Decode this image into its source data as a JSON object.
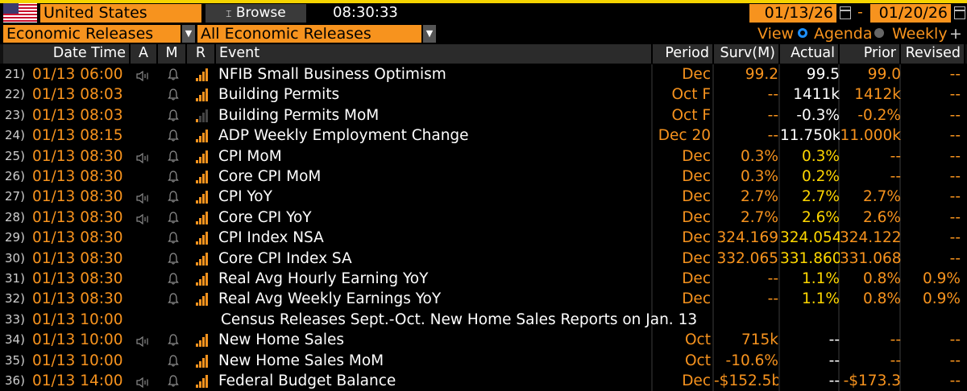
{
  "topbar": {
    "country": "United States",
    "browse_label": "Browse",
    "time": "08:30:33",
    "date_from": "01/13/26",
    "date_to": "01/20/26",
    "date_separator": "-"
  },
  "filters": {
    "category": "Economic Releases",
    "subcategory": "All Economic Releases",
    "view_label": "View",
    "agenda_label": "Agenda",
    "weekly_label": "Weekly",
    "plus_label": "+"
  },
  "columns": {
    "datetime": "Date Time",
    "a": "A",
    "m": "M",
    "r": "R",
    "event": "Event",
    "period": "Period",
    "surv": "Surv(M)",
    "actual": "Actual",
    "prior": "Prior",
    "revised": "Revised"
  },
  "colors": {
    "accent": "#f7931e",
    "actual_highlight": "#ffd700",
    "background": "#000000"
  },
  "rows": [
    {
      "n": "21)",
      "dt": "01/13 06:00",
      "alert": true,
      "bars": 4,
      "event": "NFIB Small Business Optimism",
      "period": "Dec",
      "surv": "99.2",
      "actual": "99.5",
      "actual_color": "white",
      "prior": "99.0",
      "revised": "--"
    },
    {
      "n": "22)",
      "dt": "01/13 08:03",
      "alert": false,
      "bars": 4,
      "event": "Building Permits",
      "period": "Oct F",
      "surv": "--",
      "actual": "1411k",
      "actual_color": "white",
      "prior": "1412k",
      "revised": "--"
    },
    {
      "n": "23)",
      "dt": "01/13 08:03",
      "alert": false,
      "bars": 1,
      "event": "Building Permits MoM",
      "period": "Oct F",
      "surv": "--",
      "actual": "-0.3%",
      "actual_color": "white",
      "prior": "-0.2%",
      "revised": "--"
    },
    {
      "n": "24)",
      "dt": "01/13 08:15",
      "alert": false,
      "bars": 4,
      "event": "ADP Weekly Employment Change",
      "period": "Dec 20",
      "surv": "--",
      "actual": "11.750k",
      "actual_color": "white",
      "prior": "11.000k",
      "revised": "--"
    },
    {
      "n": "25)",
      "dt": "01/13 08:30",
      "alert": true,
      "bars": 4,
      "event": "CPI MoM",
      "period": "Dec",
      "surv": "0.3%",
      "actual": "0.3%",
      "actual_color": "yellow",
      "prior": "--",
      "revised": "--"
    },
    {
      "n": "26)",
      "dt": "01/13 08:30",
      "alert": false,
      "bars": 4,
      "event": "Core CPI MoM",
      "period": "Dec",
      "surv": "0.3%",
      "actual": "0.2%",
      "actual_color": "yellow",
      "prior": "--",
      "revised": "--"
    },
    {
      "n": "27)",
      "dt": "01/13 08:30",
      "alert": true,
      "bars": 4,
      "event": "CPI YoY",
      "period": "Dec",
      "surv": "2.7%",
      "actual": "2.7%",
      "actual_color": "yellow",
      "prior": "2.7%",
      "revised": "--"
    },
    {
      "n": "28)",
      "dt": "01/13 08:30",
      "alert": true,
      "bars": 4,
      "event": "Core CPI YoY",
      "period": "Dec",
      "surv": "2.7%",
      "actual": "2.6%",
      "actual_color": "yellow",
      "prior": "2.6%",
      "revised": "--"
    },
    {
      "n": "29)",
      "dt": "01/13 08:30",
      "alert": false,
      "bars": 4,
      "event": "CPI Index NSA",
      "period": "Dec",
      "surv": "324.169",
      "actual": "324.054",
      "actual_color": "yellow",
      "prior": "324.122",
      "revised": "--"
    },
    {
      "n": "30)",
      "dt": "01/13 08:30",
      "alert": false,
      "bars": 4,
      "event": "Core CPI Index SA",
      "period": "Dec",
      "surv": "332.065",
      "actual": "331.860",
      "actual_color": "yellow",
      "prior": "331.068",
      "revised": "--"
    },
    {
      "n": "31)",
      "dt": "01/13 08:30",
      "alert": false,
      "bars": 4,
      "event": "Real Avg Hourly Earning YoY",
      "period": "Dec",
      "surv": "--",
      "actual": "1.1%",
      "actual_color": "yellow",
      "prior": "0.8%",
      "revised": "0.9%"
    },
    {
      "n": "32)",
      "dt": "01/13 08:30",
      "alert": false,
      "bars": 4,
      "event": "Real Avg Weekly Earnings YoY",
      "period": "Dec",
      "surv": "--",
      "actual": "1.1%",
      "actual_color": "yellow",
      "prior": "0.8%",
      "revised": "0.9%"
    },
    {
      "n": "33)",
      "dt": "01/13 10:00",
      "note": true,
      "event": "Census Releases Sept.-Oct. New Home Sales Reports on Jan. 13"
    },
    {
      "n": "34)",
      "dt": "01/13 10:00",
      "alert": true,
      "bars": 4,
      "event": "New Home Sales",
      "period": "Oct",
      "surv": "715k",
      "actual": "--",
      "actual_color": "white",
      "prior": "--",
      "revised": "--"
    },
    {
      "n": "35)",
      "dt": "01/13 10:00",
      "alert": false,
      "bars": 4,
      "event": "New Home Sales MoM",
      "period": "Oct",
      "surv": "-10.6%",
      "actual": "--",
      "actual_color": "white",
      "prior": "--",
      "revised": "--"
    },
    {
      "n": "36)",
      "dt": "01/13 14:00",
      "alert": true,
      "bars": 4,
      "event": "Federal Budget Balance",
      "period": "Dec",
      "surv": "-$152.5b",
      "actual": "--",
      "actual_color": "white",
      "prior": "-$173.3",
      "revised": "--"
    }
  ]
}
